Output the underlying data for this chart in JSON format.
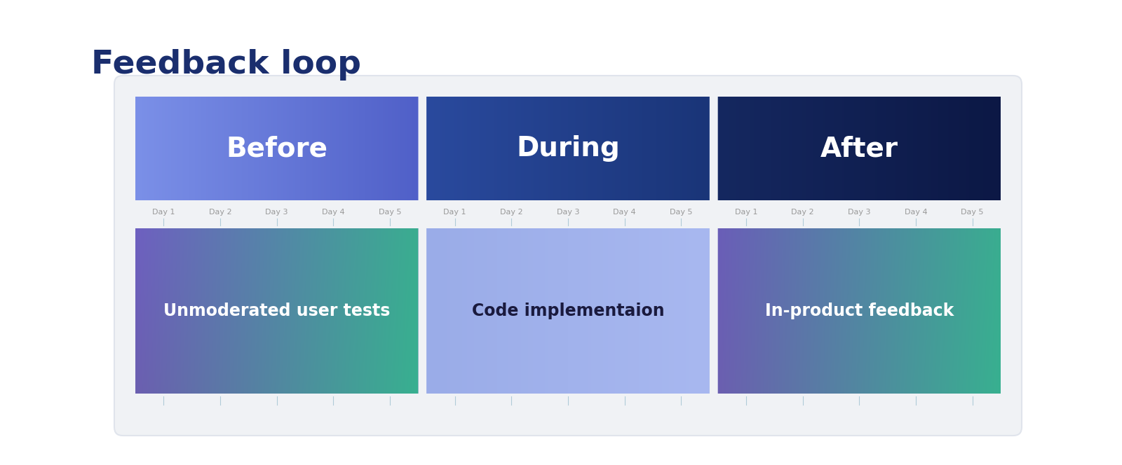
{
  "title": "Feedback loop",
  "title_color": "#1a2e6e",
  "title_fontsize": 34,
  "background_color": "#ffffff",
  "card_bg": "#f0f2f5",
  "card_edge": "#e0e4ec",
  "weeks": [
    {
      "label": "Before",
      "header_color_left": "#7b90e8",
      "header_color_right": "#5060c8",
      "body_gradient_colors": [
        "#6e60c0",
        "#3aad90",
        "#6b5fb0",
        "#38b090"
      ],
      "body_text": "Unmoderated user tests",
      "body_text_color": "#ffffff",
      "body_text_bold": true,
      "header_text_color": "#ffffff"
    },
    {
      "label": "During",
      "header_color_left": "#2a4a9e",
      "header_color_right": "#1a3578",
      "body_color": "#9aace8",
      "body_gradient_colors": [
        "#9aace8",
        "#a8b8f0"
      ],
      "body_text": "Code implementaion",
      "body_text_color": "#1a1a3e",
      "body_text_bold": true,
      "header_text_color": "#ffffff"
    },
    {
      "label": "After",
      "header_color_left": "#152860",
      "header_color_right": "#0c1845",
      "body_gradient_colors": [
        "#6a5eb8",
        "#3aad90",
        "#6b5fb0",
        "#38b090"
      ],
      "body_text": "In-product feedback",
      "body_text_color": "#ffffff",
      "body_text_bold": true,
      "header_text_color": "#ffffff"
    }
  ],
  "day_labels": [
    "Day 1",
    "Day 2",
    "Day 3",
    "Day 4",
    "Day 5"
  ],
  "day_label_color": "#999999",
  "tick_color": "#b0ccd8"
}
